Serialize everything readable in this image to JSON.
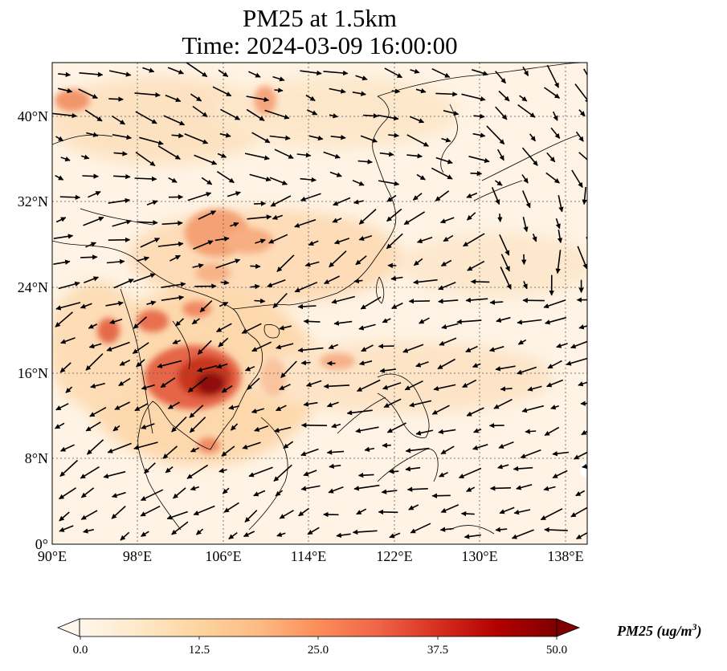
{
  "title_line1": "PM25 at 1.5km",
  "title_line2": "Time: 2024-03-09 16:00:00",
  "map": {
    "lon_ticks": [
      "90°E",
      "98°E",
      "106°E",
      "114°E",
      "122°E",
      "130°E",
      "138°E"
    ],
    "lat_ticks": [
      "0°",
      "8°N",
      "16°N",
      "24°N",
      "32°N",
      "40°N"
    ],
    "extent": {
      "lon": [
        90,
        140
      ],
      "lat": [
        0,
        45
      ]
    },
    "gridlines": "dotted",
    "wind_vectors": "black arrows"
  },
  "colorbar": {
    "label": "PM25 (ug/m",
    "label_sup": "3",
    "label_close": ")",
    "ticks": [
      "0.0",
      "12.5",
      "25.0",
      "37.5",
      "50.0"
    ],
    "range": [
      0,
      50
    ],
    "colormap": "OrRd",
    "colors": [
      "#fff7ec",
      "#fee8c8",
      "#fdd49e",
      "#fdbb84",
      "#fc8d59",
      "#ef6548",
      "#d7301f",
      "#b30000",
      "#7f0000"
    ],
    "extend": "both"
  }
}
